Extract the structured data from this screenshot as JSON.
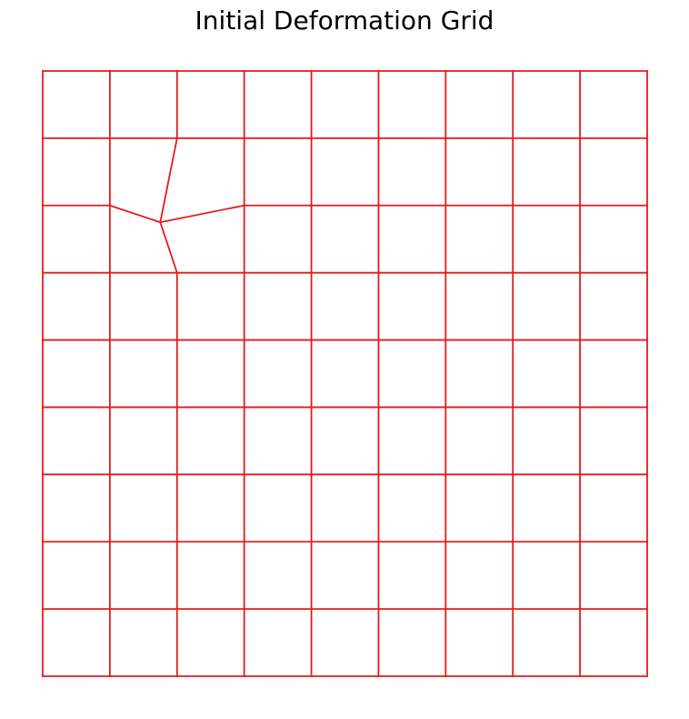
{
  "figure": {
    "title": "Initial Deformation Grid"
  },
  "chart_data": {
    "type": "deformation_grid",
    "title": "Initial Deformation Grid",
    "grid_size": [
      10,
      10
    ],
    "line_color": "#e8191b",
    "axes_visible": false,
    "xlim": [
      0,
      9
    ],
    "ylim": [
      0,
      9
    ],
    "displaced_nodes": [
      {
        "row": 2,
        "col": 2,
        "x": 1.75,
        "y": 2.25
      }
    ]
  }
}
